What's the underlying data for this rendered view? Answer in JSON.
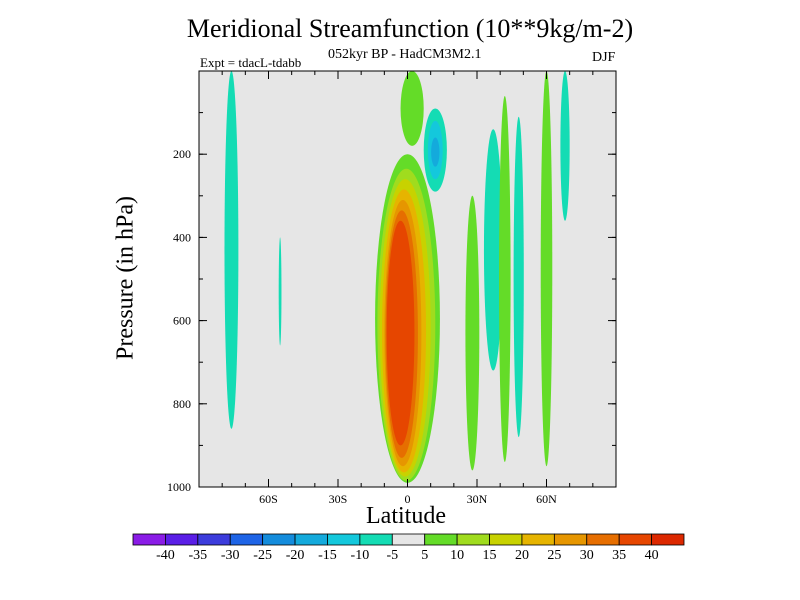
{
  "chart_data": {
    "type": "heatmap",
    "title": "Meridional Streamfunction (10**9kg/m-2)",
    "subtitle": "052kyr BP - HadCM3M2.1",
    "left_label": "Expt = tdacL-tdabb",
    "right_label": "DJF",
    "xlabel": "Latitude",
    "ylabel": "Pressure (in hPa)",
    "xlim": [
      -90,
      90
    ],
    "ylim": [
      1000,
      0
    ],
    "x_ticks": [
      {
        "value": -60,
        "label": "60S"
      },
      {
        "value": -30,
        "label": "30S"
      },
      {
        "value": 0,
        "label": "0"
      },
      {
        "value": 30,
        "label": "30N"
      },
      {
        "value": 60,
        "label": "60N"
      }
    ],
    "y_ticks": [
      {
        "value": 200,
        "label": "200"
      },
      {
        "value": 400,
        "label": "400"
      },
      {
        "value": 600,
        "label": "600"
      },
      {
        "value": 800,
        "label": "800"
      },
      {
        "value": 1000,
        "label": "1000"
      }
    ],
    "background_color": "#e6e6e6",
    "colorbar": {
      "labels": [
        "-40",
        "-35",
        "-30",
        "-25",
        "-20",
        "-15",
        "-10",
        "-5",
        "5",
        "10",
        "15",
        "20",
        "25",
        "30",
        "35",
        "40"
      ],
      "colors": [
        "#8a1ce6",
        "#5a1ee6",
        "#3c3cdc",
        "#1e64e6",
        "#148cdc",
        "#14aadc",
        "#14c8dc",
        "#14dcb4",
        "#e6e6e6",
        "#64dc28",
        "#a0dc1e",
        "#c8d200",
        "#e6b400",
        "#e69600",
        "#e66e00",
        "#e64600",
        "#dc2800"
      ],
      "bounds": [
        -40,
        -35,
        -30,
        -25,
        -20,
        -15,
        -10,
        -5,
        5,
        10,
        15,
        20,
        25,
        30,
        35,
        40
      ]
    },
    "features": [
      {
        "name": "southern-polar-band",
        "lat": -76,
        "lat_half_width": 3,
        "p_top": 0,
        "p_bottom": 860,
        "value": -7
      },
      {
        "name": "southern-thin-band",
        "lat": -55,
        "lat_half_width": 0.6,
        "p_top": 400,
        "p_bottom": 660,
        "value": -7
      },
      {
        "name": "tropical-cell-edge",
        "lat": 0,
        "lat_half_width": 14,
        "p_top": 200,
        "p_bottom": 990,
        "value": 8
      },
      {
        "name": "tropical-cell-ring-1",
        "lat": -0.5,
        "lat_half_width": 12.5,
        "p_top": 235,
        "p_bottom": 985,
        "value": 12
      },
      {
        "name": "tropical-cell-ring-2",
        "lat": -1,
        "lat_half_width": 11,
        "p_top": 260,
        "p_bottom": 975,
        "value": 17
      },
      {
        "name": "tropical-cell-ring-3",
        "lat": -1.5,
        "lat_half_width": 9.5,
        "p_top": 285,
        "p_bottom": 965,
        "value": 22
      },
      {
        "name": "tropical-cell-ring-4",
        "lat": -2,
        "lat_half_width": 8,
        "p_top": 310,
        "p_bottom": 950,
        "value": 27
      },
      {
        "name": "tropical-cell-ring-5",
        "lat": -2.5,
        "lat_half_width": 7,
        "p_top": 335,
        "p_bottom": 930,
        "value": 32
      },
      {
        "name": "tropical-cell-core",
        "lat": -3,
        "lat_half_width": 6,
        "p_top": 360,
        "p_bottom": 900,
        "value": 38
      },
      {
        "name": "upper-positive-blob",
        "lat": 2,
        "lat_half_width": 5,
        "p_top": 0,
        "p_bottom": 180,
        "value": 7
      },
      {
        "name": "negative-cell-outer",
        "lat": 12,
        "lat_half_width": 5,
        "p_top": 90,
        "p_bottom": 290,
        "value": -8
      },
      {
        "name": "negative-cell-mid",
        "lat": 12,
        "lat_half_width": 3.2,
        "p_top": 120,
        "p_bottom": 260,
        "value": -13
      },
      {
        "name": "negative-cell-core",
        "lat": 12,
        "lat_half_width": 1.8,
        "p_top": 160,
        "p_bottom": 230,
        "value": -18
      },
      {
        "name": "subtropical-negative-band",
        "lat": 37,
        "lat_half_width": 4,
        "p_top": 140,
        "p_bottom": 720,
        "value": -7
      },
      {
        "name": "midlatitude-negative-band",
        "lat": 48,
        "lat_half_width": 2.2,
        "p_top": 110,
        "p_bottom": 880,
        "value": -7
      },
      {
        "name": "subtropical-positive-band",
        "lat": 28,
        "lat_half_width": 3,
        "p_top": 300,
        "p_bottom": 960,
        "value": 8
      },
      {
        "name": "midlatitude-positive-band",
        "lat": 42,
        "lat_half_width": 2.5,
        "p_top": 60,
        "p_bottom": 940,
        "value": 8
      },
      {
        "name": "subpolar-positive-band",
        "lat": 60,
        "lat_half_width": 2.5,
        "p_top": 0,
        "p_bottom": 950,
        "value": 8
      },
      {
        "name": "polar-negative-band",
        "lat": 68,
        "lat_half_width": 2,
        "p_top": 0,
        "p_bottom": 360,
        "value": -7
      }
    ]
  }
}
